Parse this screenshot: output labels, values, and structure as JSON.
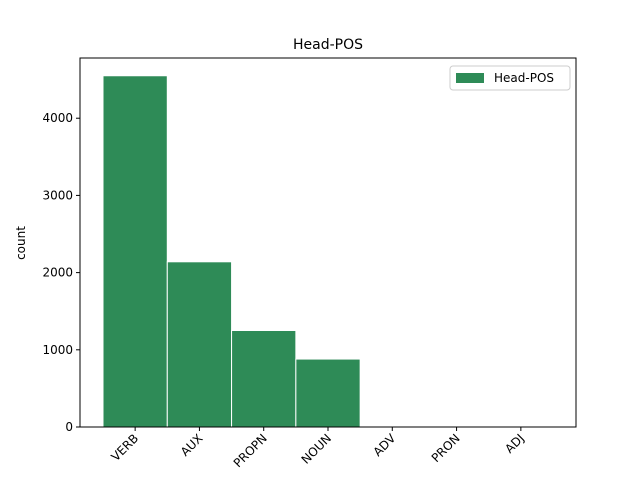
{
  "chart_data": {
    "type": "bar",
    "title": "Head-POS",
    "ylabel": "count",
    "categories": [
      "VERB",
      "AUX",
      "PROPN",
      "NOUN",
      "ADV",
      "PRON",
      "ADJ"
    ],
    "series": [
      {
        "name": "Head-POS",
        "color": "#2e8b57",
        "values": [
          4550,
          2140,
          1250,
          880,
          0,
          0,
          0
        ]
      }
    ],
    "ylim": [
      0,
      4780
    ],
    "yticks": [
      0,
      1000,
      2000,
      3000,
      4000
    ],
    "legend": "upper right"
  }
}
